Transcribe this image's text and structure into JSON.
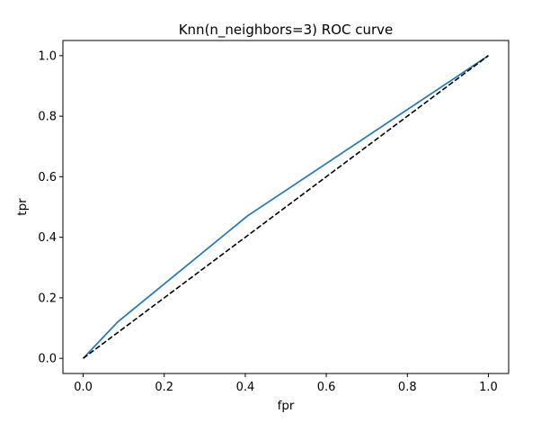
{
  "chart_data": {
    "type": "line",
    "title": "Knn(n_neighbors=3) ROC curve",
    "xlabel": "fpr",
    "ylabel": "tpr",
    "xlim": [
      -0.05,
      1.05
    ],
    "ylim": [
      -0.05,
      1.05
    ],
    "xticks": [
      0.0,
      0.2,
      0.4,
      0.6,
      0.8,
      1.0
    ],
    "yticks": [
      0.0,
      0.2,
      0.4,
      0.6,
      0.8,
      1.0
    ],
    "xtick_labels": [
      "0.0",
      "0.2",
      "0.4",
      "0.6",
      "0.8",
      "1.0"
    ],
    "ytick_labels": [
      "0.0",
      "0.2",
      "0.4",
      "0.6",
      "0.8",
      "1.0"
    ],
    "grid": false,
    "series": [
      {
        "x": [
          0.0,
          0.085,
          0.405,
          1.0
        ],
        "y": [
          0.0,
          0.12,
          0.47,
          1.0
        ],
        "color": "#1f77b4",
        "style": "solid"
      },
      {
        "x": [
          0.0,
          1.0
        ],
        "y": [
          0.0,
          1.0
        ],
        "color": "#000000",
        "style": "dashed"
      }
    ]
  }
}
